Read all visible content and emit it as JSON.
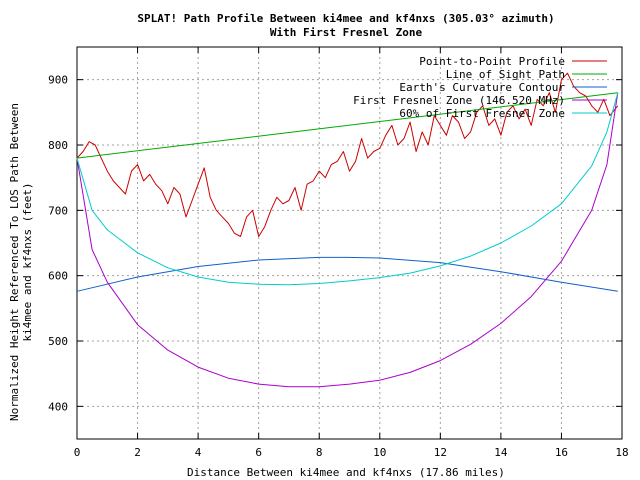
{
  "chart_data": {
    "type": "line",
    "title": "SPLAT! Path Profile Between ki4mee and kf4nxs (305.03° azimuth)",
    "subtitle": "With First Fresnel Zone",
    "xlabel": "Distance Between ki4mee and kf4nxs (17.86 miles)",
    "ylabel_line1": "Normalized Height Referenced To LOS Path Between",
    "ylabel_line2": "ki4mee and kf4nxs (feet)",
    "xlim": [
      0,
      18
    ],
    "ylim": [
      350,
      950
    ],
    "x_ticks": [
      0,
      2,
      4,
      6,
      8,
      10,
      12,
      14,
      16,
      18
    ],
    "y_ticks": [
      400,
      500,
      600,
      700,
      800,
      900
    ],
    "grid": true,
    "legend_position": "top-right",
    "series": [
      {
        "name": "Point-to-Point Profile",
        "color": "#cc0000",
        "x": [
          0,
          0.2,
          0.4,
          0.6,
          0.8,
          1.0,
          1.2,
          1.4,
          1.6,
          1.8,
          2.0,
          2.2,
          2.4,
          2.6,
          2.8,
          3.0,
          3.2,
          3.4,
          3.6,
          3.8,
          4.0,
          4.2,
          4.4,
          4.6,
          4.8,
          5.0,
          5.2,
          5.4,
          5.6,
          5.8,
          6.0,
          6.2,
          6.4,
          6.6,
          6.8,
          7.0,
          7.2,
          7.4,
          7.6,
          7.8,
          8.0,
          8.2,
          8.4,
          8.6,
          8.8,
          9.0,
          9.2,
          9.4,
          9.6,
          9.8,
          10.0,
          10.2,
          10.4,
          10.6,
          10.8,
          11.0,
          11.2,
          11.4,
          11.6,
          11.8,
          12.0,
          12.2,
          12.4,
          12.6,
          12.8,
          13.0,
          13.2,
          13.4,
          13.6,
          13.8,
          14.0,
          14.2,
          14.4,
          14.6,
          14.8,
          15.0,
          15.2,
          15.4,
          15.6,
          15.8,
          16.0,
          16.2,
          16.4,
          16.6,
          16.8,
          17.0,
          17.2,
          17.4,
          17.6,
          17.86
        ],
        "y": [
          780,
          790,
          805,
          800,
          780,
          760,
          745,
          735,
          725,
          760,
          770,
          745,
          755,
          740,
          730,
          710,
          735,
          725,
          690,
          715,
          740,
          765,
          720,
          700,
          690,
          680,
          665,
          660,
          690,
          700,
          660,
          675,
          700,
          720,
          710,
          715,
          735,
          700,
          740,
          745,
          760,
          750,
          770,
          775,
          790,
          760,
          775,
          810,
          780,
          790,
          795,
          815,
          830,
          800,
          810,
          835,
          790,
          820,
          800,
          845,
          830,
          815,
          845,
          835,
          810,
          820,
          850,
          860,
          830,
          840,
          815,
          850,
          860,
          840,
          855,
          830,
          870,
          860,
          880,
          850,
          900,
          910,
          890,
          880,
          875,
          860,
          850,
          870,
          845,
          860
        ]
      },
      {
        "name": "Line of Sight Path",
        "color": "#00aa00",
        "x": [
          0,
          17.86
        ],
        "y": [
          780,
          880
        ]
      },
      {
        "name": "Earth's Curvature Contour",
        "color": "#1060cc",
        "x": [
          0,
          2,
          4,
          6,
          8,
          8.93,
          10,
          12,
          14,
          16,
          17.86
        ],
        "y": [
          576,
          598,
          614,
          624,
          628,
          628,
          627,
          620,
          606,
          590,
          576
        ]
      },
      {
        "name": "First Fresnel Zone (146.520 MHz)",
        "color": "#aa00cc",
        "x": [
          0,
          0.5,
          1,
          2,
          3,
          4,
          5,
          6,
          7,
          8,
          9,
          10,
          11,
          12,
          13,
          14,
          15,
          16,
          17,
          17.5,
          17.86
        ],
        "y": [
          780,
          640,
          590,
          525,
          486,
          460,
          443,
          434,
          430,
          430,
          434,
          440,
          452,
          470,
          495,
          527,
          568,
          622,
          700,
          770,
          880
        ]
      },
      {
        "name": "60% of First Fresnel Zone",
        "color": "#00cccc",
        "x": [
          0,
          0.5,
          1,
          2,
          3,
          4,
          5,
          6,
          7,
          8,
          9,
          10,
          11,
          12,
          13,
          14,
          15,
          16,
          17,
          17.5,
          17.86
        ],
        "y": [
          780,
          700,
          670,
          635,
          612,
          598,
          590,
          587,
          586,
          588,
          592,
          597,
          604,
          615,
          630,
          650,
          676,
          710,
          768,
          820,
          880
        ]
      }
    ]
  }
}
